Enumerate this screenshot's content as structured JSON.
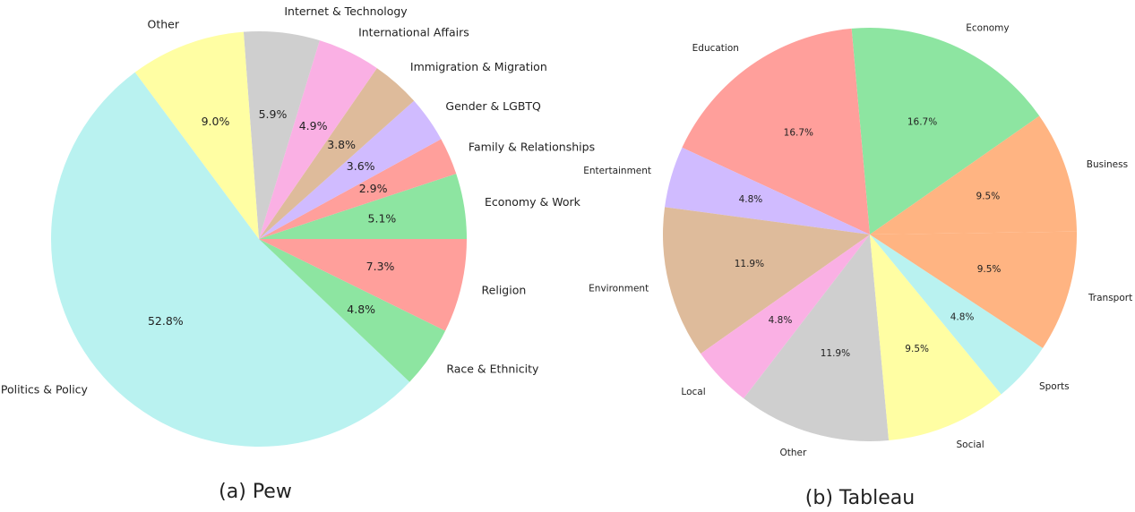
{
  "chart_data": [
    {
      "type": "pie",
      "title": "(a) Pew",
      "categories": [
        "Economy & Work",
        "Family & Relationships",
        "Gender & LGBTQ",
        "Immigration & Migration",
        "International Affairs",
        "Internet & Technology",
        "Other",
        "Politics & Policy",
        "Race & Ethnicity",
        "Religion"
      ],
      "values": [
        5.1,
        2.9,
        3.6,
        3.8,
        4.9,
        5.9,
        9.0,
        52.8,
        4.8,
        7.3
      ],
      "value_labels": [
        "5.1%",
        "2.9%",
        "3.6%",
        "3.8%",
        "4.9%",
        "5.9%",
        "9.0%",
        "52.8%",
        "4.8%",
        "7.3%"
      ],
      "colors": [
        "#8de5a1",
        "#ff9f9b",
        "#d0bbff",
        "#debb9b",
        "#fab0e4",
        "#cfcfcf",
        "#fffea3",
        "#b9f2f0",
        "#8de5a1",
        "#ff9f9b"
      ]
    },
    {
      "type": "pie",
      "title": "(b) Tableau",
      "categories": [
        "Economy",
        "Education",
        "Entertainment",
        "Environment",
        "Local",
        "Other",
        "Social",
        "Sports",
        "Transport",
        "Business"
      ],
      "values": [
        16.7,
        16.7,
        4.8,
        11.9,
        4.8,
        11.9,
        9.5,
        4.8,
        9.5,
        9.5
      ],
      "value_labels": [
        "16.7%",
        "16.7%",
        "4.8%",
        "11.9%",
        "4.8%",
        "11.9%",
        "9.5%",
        "4.8%",
        "9.5%",
        "9.5%"
      ],
      "colors": [
        "#8de5a1",
        "#ff9f9b",
        "#d0bbff",
        "#debb9b",
        "#fab0e4",
        "#cfcfcf",
        "#fffea3",
        "#b9f2f0",
        "#ffb482",
        "#ffb482"
      ]
    }
  ]
}
